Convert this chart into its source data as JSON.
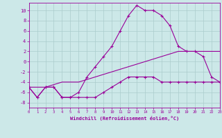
{
  "hours": [
    0,
    1,
    2,
    3,
    4,
    5,
    6,
    7,
    8,
    9,
    10,
    11,
    12,
    13,
    14,
    15,
    16,
    17,
    18,
    19,
    20,
    21,
    22,
    23
  ],
  "temp": [
    -5,
    -7,
    -5,
    -5,
    -7,
    -7,
    -6,
    -3,
    -1,
    1,
    3,
    6,
    9,
    11,
    10,
    10,
    9,
    7,
    3,
    2,
    2,
    1,
    -3,
    -4
  ],
  "windchill": [
    -5,
    -7,
    -5,
    -5,
    -7,
    -7,
    -7,
    -7,
    -7,
    -6,
    -5,
    -4,
    -3,
    -3,
    -3,
    -3,
    -4,
    -4,
    -4,
    -4,
    -4,
    -4,
    -4,
    -4
  ],
  "line3": [
    -5,
    -5,
    -5,
    -4.5,
    -4,
    -4,
    -4,
    -3.5,
    -3,
    -2.5,
    -2,
    -1.5,
    -1,
    -0.5,
    0,
    0.5,
    1,
    1.5,
    2,
    2,
    2,
    2,
    2,
    2
  ],
  "bg_color": "#cce8e8",
  "grid_color": "#aacccc",
  "line_color": "#990099",
  "xlabel": "Windchill (Refroidissement éolien,°C)",
  "ylim": [
    -9,
    11.5
  ],
  "xlim": [
    0,
    23
  ],
  "yticks": [
    -8,
    -6,
    -4,
    -2,
    0,
    2,
    4,
    6,
    8,
    10
  ],
  "xticks": [
    0,
    1,
    2,
    3,
    4,
    5,
    6,
    7,
    8,
    9,
    10,
    11,
    12,
    13,
    14,
    15,
    16,
    17,
    18,
    19,
    20,
    21,
    22,
    23
  ]
}
